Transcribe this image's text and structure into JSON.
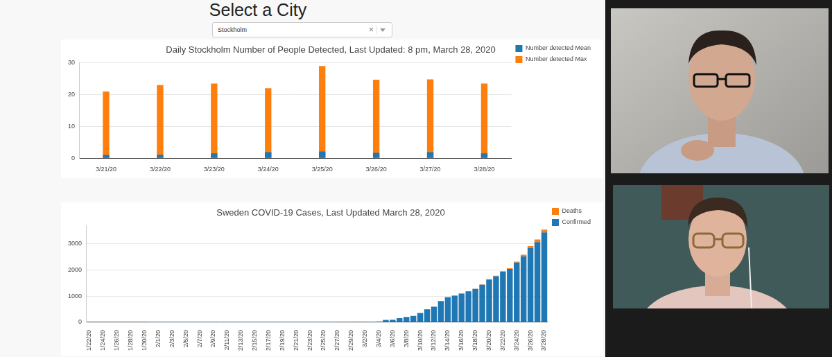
{
  "header": {
    "title": "Select a City",
    "dropdown": "Stockholm"
  },
  "chart_data": [
    {
      "type": "bar",
      "title": "Daily Stockholm Number of People Detected, Last Updated: 8 pm, March 28, 2020",
      "categories": [
        "3/21/20",
        "3/22/20",
        "3/23/20",
        "3/24/20",
        "3/25/20",
        "3/26/20",
        "3/27/20",
        "3/28/20"
      ],
      "series": [
        {
          "name": "Number detected Max",
          "color": "#ff7f0e",
          "values": [
            21,
            23,
            23.5,
            22,
            29,
            24.7,
            24.8,
            23.5
          ]
        },
        {
          "name": "Number detected Mean",
          "color": "#1f77b4",
          "values": [
            1,
            1.1,
            1.5,
            1.9,
            2.1,
            1.7,
            1.9,
            1.5
          ]
        }
      ],
      "ylim": [
        0,
        30
      ],
      "yticks": [
        0,
        10,
        20,
        30
      ],
      "grid": true,
      "legend": "right",
      "stacked": false
    },
    {
      "type": "bar",
      "title": "Sweden COVID-19 Cases, Last Updated March 28, 2020",
      "categories": [
        "1/22/20",
        null,
        "1/24/20",
        null,
        "1/26/20",
        null,
        "1/28/20",
        null,
        "1/30/20",
        null,
        "2/1/20",
        null,
        "2/3/20",
        null,
        "2/5/20",
        null,
        "2/7/20",
        null,
        "2/9/20",
        null,
        "2/11/20",
        null,
        "2/13/20",
        null,
        "2/15/20",
        null,
        "2/17/20",
        null,
        "2/19/20",
        null,
        "2/21/20",
        null,
        "2/23/20",
        null,
        "2/25/20",
        null,
        "2/27/20",
        null,
        "2/29/20",
        null,
        "3/2/20",
        null,
        "3/4/20",
        null,
        "3/6/20",
        null,
        "3/8/20",
        null,
        "3/10/20",
        null,
        "3/12/20",
        null,
        "3/14/20",
        null,
        "3/16/20",
        null,
        "3/18/20",
        null,
        "3/20/20",
        null,
        "3/22/20",
        null,
        "3/24/20",
        null,
        "3/26/20",
        null,
        "3/28/20"
      ],
      "series": [
        {
          "name": "Deaths",
          "color": "#ff7f0e",
          "values": [
            0,
            0,
            0,
            0,
            0,
            0,
            0,
            0,
            0,
            0,
            0,
            0,
            0,
            0,
            0,
            0,
            0,
            0,
            0,
            0,
            0,
            0,
            0,
            0,
            0,
            0,
            0,
            0,
            0,
            0,
            0,
            0,
            0,
            0,
            0,
            0,
            0,
            0,
            0,
            0,
            0,
            0,
            0,
            0,
            0,
            0,
            0,
            0,
            0,
            1,
            1,
            1,
            2,
            3,
            6,
            7,
            10,
            11,
            16,
            20,
            21,
            25,
            36,
            62,
            77,
            105,
            105
          ]
        },
        {
          "name": "Confirmed",
          "color": "#1f77b4",
          "values": [
            0,
            0,
            0,
            0,
            0,
            0,
            0,
            0,
            0,
            1,
            1,
            1,
            1,
            1,
            1,
            1,
            1,
            1,
            1,
            1,
            1,
            1,
            1,
            1,
            1,
            1,
            1,
            1,
            1,
            1,
            1,
            1,
            1,
            1,
            1,
            2,
            7,
            7,
            12,
            14,
            15,
            21,
            35,
            94,
            101,
            161,
            203,
            248,
            355,
            500,
            599,
            814,
            961,
            1022,
            1103,
            1190,
            1279,
            1439,
            1639,
            1763,
            1934,
            2046,
            2286,
            2526,
            2840,
            3069,
            3447
          ]
        }
      ],
      "ylim": [
        0,
        3700
      ],
      "yticks": [
        0,
        1000,
        2000,
        3000
      ],
      "grid": true,
      "legend": "right",
      "stacked": true
    }
  ]
}
